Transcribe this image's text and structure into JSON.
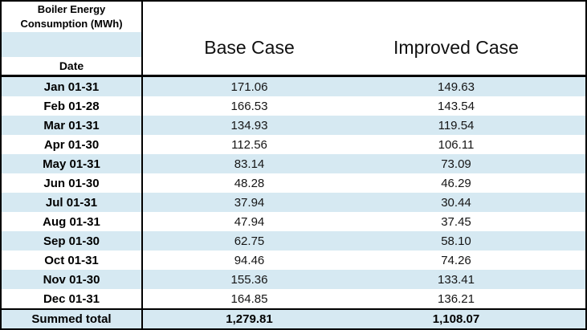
{
  "colors": {
    "stripe": "#d6e9f2",
    "border": "#000000",
    "background": "#ffffff"
  },
  "header": {
    "title_line1": "Boiler Energy",
    "title_line2": "Consumption (MWh)",
    "date_label": "Date",
    "columns": [
      "Base Case",
      "Improved Case"
    ]
  },
  "rows": [
    {
      "date": "Jan 01-31",
      "base": "171.06",
      "improved": "149.63"
    },
    {
      "date": "Feb 01-28",
      "base": "166.53",
      "improved": "143.54"
    },
    {
      "date": "Mar 01-31",
      "base": "134.93",
      "improved": "119.54"
    },
    {
      "date": "Apr 01-30",
      "base": "112.56",
      "improved": "106.11"
    },
    {
      "date": "May 01-31",
      "base": "83.14",
      "improved": "73.09"
    },
    {
      "date": "Jun 01-30",
      "base": "48.28",
      "improved": "46.29"
    },
    {
      "date": "Jul 01-31",
      "base": "37.94",
      "improved": "30.44"
    },
    {
      "date": "Aug 01-31",
      "base": "47.94",
      "improved": "37.45"
    },
    {
      "date": "Sep 01-30",
      "base": "62.75",
      "improved": "58.10"
    },
    {
      "date": "Oct 01-31",
      "base": "94.46",
      "improved": "74.26"
    },
    {
      "date": "Nov 01-30",
      "base": "155.36",
      "improved": "133.41"
    },
    {
      "date": "Dec 01-31",
      "base": "164.85",
      "improved": "136.21"
    }
  ],
  "total": {
    "label": "Summed total",
    "base": "1,279.81",
    "improved": "1,108.07"
  }
}
